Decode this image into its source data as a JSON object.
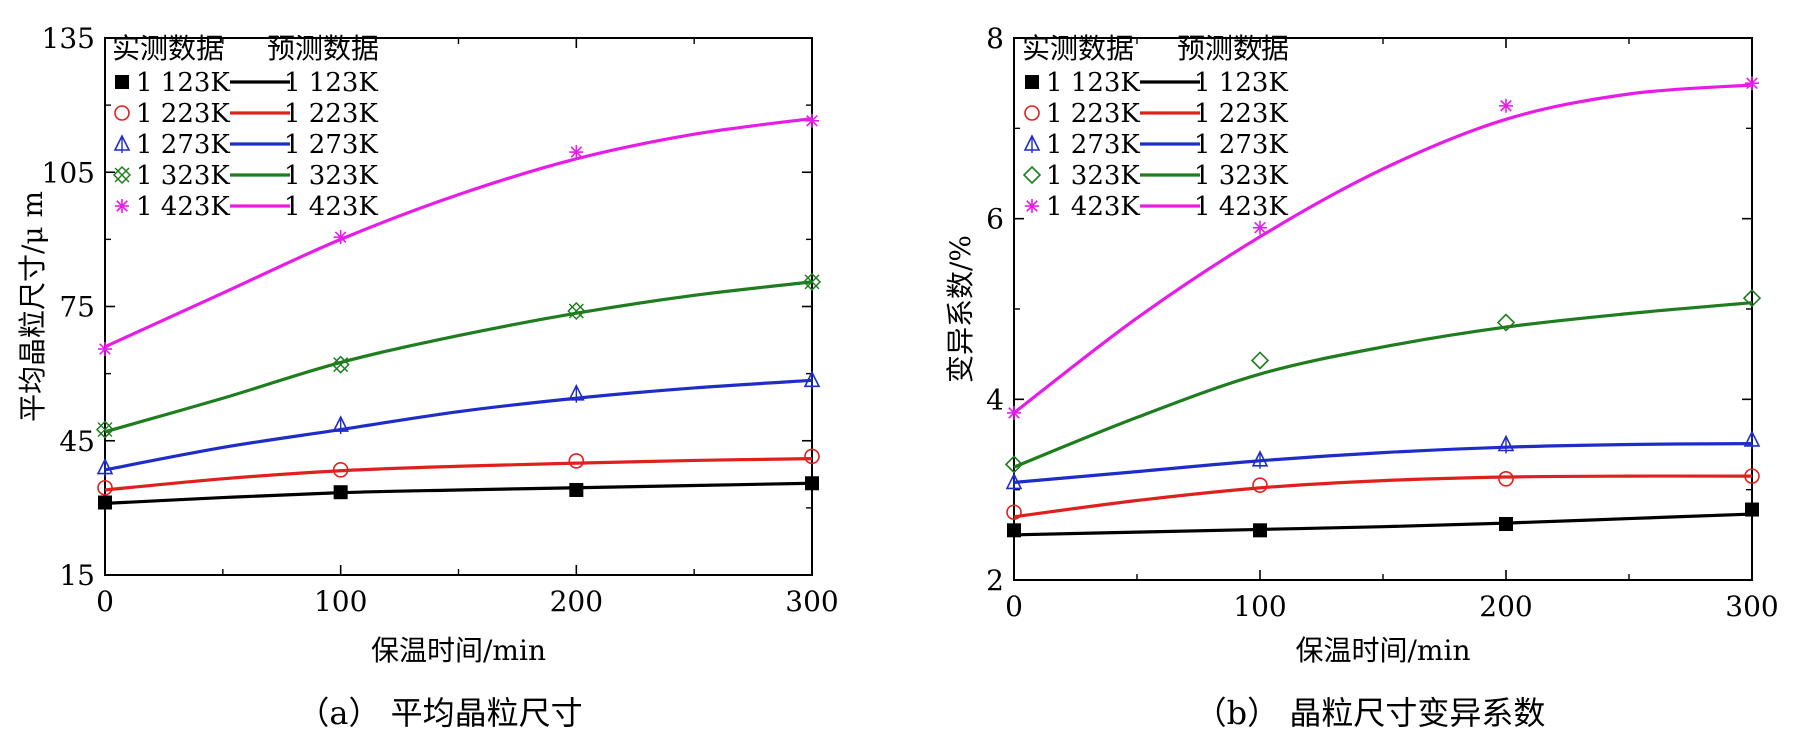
{
  "chart_data": [
    {
      "panel_caption": "（a）  平均晶粒尺寸",
      "type": "line",
      "xlabel": "保温时间/min",
      "ylabel": "平均晶粒尺寸/μ m",
      "xlim": [
        0,
        300
      ],
      "ylim": [
        15,
        135
      ],
      "xticks": [
        "0",
        "100",
        "200",
        "300"
      ],
      "yticks": [
        "15",
        "45",
        "75",
        "105",
        "135"
      ],
      "legend": {
        "placement": "top-left",
        "measured_header": "实测数据",
        "predicted_header": "预测数据"
      },
      "series": [
        {
          "name": "1 123K",
          "color": "#000000",
          "marker": "filled-square",
          "measured_x": [
            0,
            100,
            200,
            300
          ],
          "measured_y": [
            31.2,
            33.5,
            34.0,
            35.5
          ],
          "predicted_x": [
            0,
            50,
            100,
            150,
            200,
            250,
            300
          ],
          "predicted_y": [
            31.0,
            32.3,
            33.4,
            34.0,
            34.5,
            35.0,
            35.5
          ]
        },
        {
          "name": "1 223K",
          "color": "#e0201c",
          "marker": "open-circle",
          "measured_x": [
            0,
            100,
            200,
            300
          ],
          "measured_y": [
            34.5,
            38.5,
            40.5,
            41.5
          ],
          "predicted_x": [
            0,
            50,
            100,
            150,
            200,
            250,
            300
          ],
          "predicted_y": [
            34.0,
            36.5,
            38.3,
            39.3,
            40.0,
            40.6,
            41.0
          ]
        },
        {
          "name": "1 273K",
          "color": "#1f2dc8",
          "marker": "open-triangle",
          "measured_x": [
            0,
            100,
            200,
            300
          ],
          "measured_y": [
            39.0,
            48.5,
            55.5,
            58.5
          ],
          "predicted_x": [
            0,
            50,
            100,
            150,
            200,
            250,
            300
          ],
          "predicted_y": [
            38.5,
            43.5,
            47.5,
            51.5,
            54.5,
            56.8,
            58.5
          ]
        },
        {
          "name": "1 323K",
          "color": "#1e7d1e",
          "marker": "open-x-square",
          "measured_x": [
            0,
            100,
            200,
            300
          ],
          "measured_y": [
            47.5,
            62.0,
            74.0,
            80.5
          ],
          "predicted_x": [
            0,
            50,
            100,
            150,
            200,
            250,
            300
          ],
          "predicted_y": [
            47.0,
            54.5,
            62.5,
            68.5,
            73.5,
            77.5,
            80.5
          ]
        },
        {
          "name": "1 423K",
          "color": "#e81ce8",
          "marker": "asterisk",
          "measured_x": [
            0,
            100,
            200,
            300
          ],
          "measured_y": [
            65.5,
            90.5,
            109.5,
            116.5
          ],
          "predicted_x": [
            0,
            50,
            100,
            150,
            200,
            250,
            300
          ],
          "predicted_y": [
            66.0,
            78.0,
            90.0,
            100.0,
            108.0,
            113.5,
            117.0
          ]
        }
      ]
    },
    {
      "panel_caption": "（b）  晶粒尺寸变异系数",
      "type": "line",
      "xlabel": "保温时间/min",
      "ylabel": "变异系数/%",
      "xlim": [
        0,
        300
      ],
      "ylim": [
        2,
        8
      ],
      "xticks": [
        "0",
        "100",
        "200",
        "300"
      ],
      "yticks": [
        "2",
        "4",
        "6",
        "8"
      ],
      "legend": {
        "placement": "top-left",
        "measured_header": "实测数据",
        "predicted_header": "预测数据"
      },
      "series": [
        {
          "name": "1 123K",
          "color": "#000000",
          "marker": "filled-square",
          "measured_x": [
            0,
            100,
            200,
            300
          ],
          "measured_y": [
            2.55,
            2.55,
            2.62,
            2.78
          ],
          "predicted_x": [
            0,
            50,
            100,
            150,
            200,
            250,
            300
          ],
          "predicted_y": [
            2.5,
            2.53,
            2.56,
            2.59,
            2.63,
            2.68,
            2.73
          ]
        },
        {
          "name": "1 223K",
          "color": "#e0201c",
          "marker": "open-circle",
          "measured_x": [
            0,
            100,
            200,
            300
          ],
          "measured_y": [
            2.75,
            3.05,
            3.12,
            3.15
          ],
          "predicted_x": [
            0,
            50,
            100,
            150,
            200,
            250,
            300
          ],
          "predicted_y": [
            2.7,
            2.88,
            3.02,
            3.1,
            3.14,
            3.15,
            3.15
          ]
        },
        {
          "name": "1 273K",
          "color": "#1f2dc8",
          "marker": "open-triangle",
          "measured_x": [
            0,
            100,
            200,
            300
          ],
          "measured_y": [
            3.08,
            3.33,
            3.5,
            3.55
          ],
          "predicted_x": [
            0,
            50,
            100,
            150,
            200,
            250,
            300
          ],
          "predicted_y": [
            3.08,
            3.2,
            3.32,
            3.41,
            3.47,
            3.5,
            3.51
          ]
        },
        {
          "name": "1 323K",
          "color": "#1e7d1e",
          "marker": "open-diamond",
          "measured_x": [
            0,
            100,
            200,
            300
          ],
          "measured_y": [
            3.28,
            4.43,
            4.85,
            5.12
          ],
          "predicted_x": [
            0,
            50,
            100,
            150,
            200,
            250,
            300
          ],
          "predicted_y": [
            3.25,
            3.8,
            4.28,
            4.58,
            4.8,
            4.95,
            5.07
          ]
        },
        {
          "name": "1 423K",
          "color": "#e81ce8",
          "marker": "asterisk",
          "measured_x": [
            0,
            100,
            200,
            300
          ],
          "measured_y": [
            3.85,
            5.9,
            7.25,
            7.5
          ],
          "predicted_x": [
            0,
            50,
            100,
            150,
            200,
            250,
            300
          ],
          "predicted_y": [
            3.85,
            4.9,
            5.8,
            6.55,
            7.1,
            7.38,
            7.48
          ]
        }
      ]
    }
  ]
}
